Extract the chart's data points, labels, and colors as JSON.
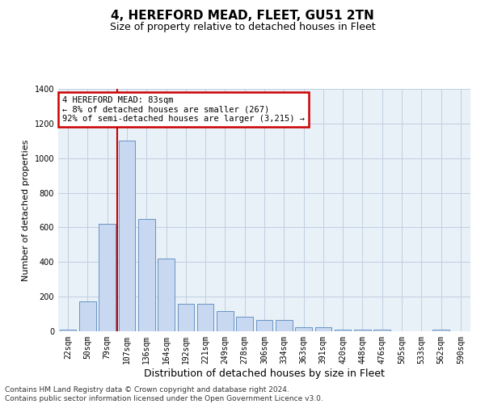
{
  "title": "4, HEREFORD MEAD, FLEET, GU51 2TN",
  "subtitle": "Size of property relative to detached houses in Fleet",
  "xlabel": "Distribution of detached houses by size in Fleet",
  "ylabel": "Number of detached properties",
  "categories": [
    "22sqm",
    "50sqm",
    "79sqm",
    "107sqm",
    "136sqm",
    "164sqm",
    "192sqm",
    "221sqm",
    "249sqm",
    "278sqm",
    "306sqm",
    "334sqm",
    "363sqm",
    "391sqm",
    "420sqm",
    "448sqm",
    "476sqm",
    "505sqm",
    "533sqm",
    "562sqm",
    "590sqm"
  ],
  "values": [
    10,
    175,
    620,
    1100,
    650,
    420,
    160,
    160,
    115,
    85,
    65,
    65,
    25,
    25,
    10,
    10,
    10,
    0,
    0,
    10,
    0
  ],
  "bar_color": "#c8d8f0",
  "bar_edge_color": "#5588bb",
  "grid_color": "#c0cfe0",
  "bg_color": "#e8f0f8",
  "annotation_text": "4 HEREFORD MEAD: 83sqm\n← 8% of detached houses are smaller (267)\n92% of semi-detached houses are larger (3,215) →",
  "annotation_box_color": "#ffffff",
  "annotation_box_edge_color": "#cc0000",
  "vline_x": 2.5,
  "vline_color": "#cc0000",
  "ylim": [
    0,
    1400
  ],
  "yticks": [
    0,
    200,
    400,
    600,
    800,
    1000,
    1200,
    1400
  ],
  "footer": "Contains HM Land Registry data © Crown copyright and database right 2024.\nContains public sector information licensed under the Open Government Licence v3.0.",
  "title_fontsize": 11,
  "subtitle_fontsize": 9,
  "xlabel_fontsize": 9,
  "ylabel_fontsize": 8,
  "tick_fontsize": 7,
  "footer_fontsize": 6.5
}
